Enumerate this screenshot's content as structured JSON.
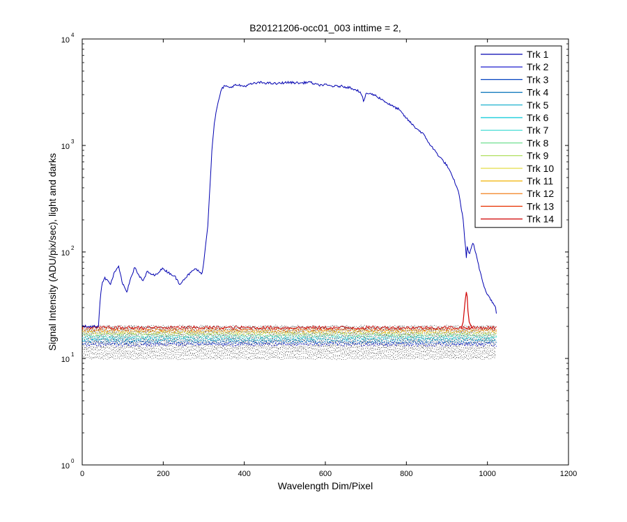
{
  "chart_data": {
    "type": "line",
    "title": "B20121206-occ01_003 inttime = 2,",
    "xlabel": "Wavelength Dim/Pixel",
    "ylabel": "Signal Intensity (ADU/pix/sec), light and darks",
    "xlim": [
      0,
      1200
    ],
    "ylim": [
      1,
      10000
    ],
    "yscale": "log",
    "xticks": [
      0,
      200,
      400,
      600,
      800,
      1000,
      1200
    ],
    "yticks": [
      {
        "value": 1,
        "base": "10",
        "exp": "0"
      },
      {
        "value": 10,
        "base": "10",
        "exp": "1"
      },
      {
        "value": 100,
        "base": "10",
        "exp": "2"
      },
      {
        "value": 1000,
        "base": "10",
        "exp": "3"
      },
      {
        "value": 10000,
        "base": "10",
        "exp": "4"
      }
    ],
    "grid": false,
    "legend_position": "top-right",
    "series": [
      {
        "name": "Trk 1",
        "color": "#0000b0"
      },
      {
        "name": "Trk 2",
        "color": "#0000c8"
      },
      {
        "name": "Trk 3",
        "color": "#0040c0"
      },
      {
        "name": "Trk 4",
        "color": "#0070b8"
      },
      {
        "name": "Trk 5",
        "color": "#00a8c8"
      },
      {
        "name": "Trk 6",
        "color": "#00c8d8"
      },
      {
        "name": "Trk 7",
        "color": "#30d8d0"
      },
      {
        "name": "Trk 8",
        "color": "#70e090"
      },
      {
        "name": "Trk 9",
        "color": "#b0e060"
      },
      {
        "name": "Trk 10",
        "color": "#e0d830"
      },
      {
        "name": "Trk 11",
        "color": "#f0b000"
      },
      {
        "name": "Trk 12",
        "color": "#f07000"
      },
      {
        "name": "Trk 13",
        "color": "#e83000"
      },
      {
        "name": "Trk 14",
        "color": "#d00000"
      }
    ],
    "trk1_profile": {
      "x": [
        0,
        40,
        45,
        50,
        55,
        60,
        70,
        80,
        90,
        100,
        110,
        120,
        130,
        140,
        150,
        160,
        170,
        180,
        190,
        200,
        210,
        220,
        230,
        240,
        250,
        260,
        270,
        280,
        290,
        295,
        300,
        305,
        310,
        315,
        320,
        325,
        330,
        335,
        340,
        345,
        350,
        355,
        360,
        380,
        400,
        420,
        440,
        460,
        480,
        500,
        520,
        540,
        560,
        580,
        600,
        620,
        640,
        660,
        680,
        690,
        695,
        700,
        720,
        740,
        760,
        780,
        800,
        820,
        840,
        860,
        880,
        900,
        920,
        930,
        940,
        945,
        948,
        950,
        955,
        960,
        965,
        970,
        975,
        980,
        990,
        1000,
        1010,
        1020,
        1023
      ],
      "y": [
        20,
        20,
        40,
        52,
        57,
        55,
        50,
        65,
        72,
        50,
        42,
        58,
        72,
        60,
        53,
        65,
        62,
        60,
        66,
        70,
        65,
        62,
        58,
        50,
        55,
        60,
        65,
        70,
        64,
        62,
        80,
        120,
        180,
        400,
        900,
        1500,
        2000,
        2500,
        3000,
        3400,
        3600,
        3600,
        3500,
        3700,
        3600,
        3800,
        3900,
        3850,
        3800,
        3900,
        3900,
        3850,
        3950,
        3700,
        3700,
        3600,
        3600,
        3500,
        3300,
        3000,
        2500,
        3100,
        3000,
        2700,
        2400,
        2200,
        1800,
        1500,
        1300,
        1000,
        800,
        650,
        450,
        350,
        200,
        120,
        90,
        110,
        95,
        110,
        120,
        100,
        85,
        70,
        50,
        40,
        35,
        30,
        25
      ]
    },
    "trk14_peak": {
      "x": [
        935,
        940,
        945,
        948,
        950,
        952,
        955,
        960,
        965
      ],
      "y": [
        19,
        22,
        35,
        42,
        38,
        28,
        22,
        20,
        19
      ]
    },
    "dark_band": {
      "x_range": [
        0,
        1023
      ],
      "y_range": [
        10,
        20
      ]
    }
  }
}
